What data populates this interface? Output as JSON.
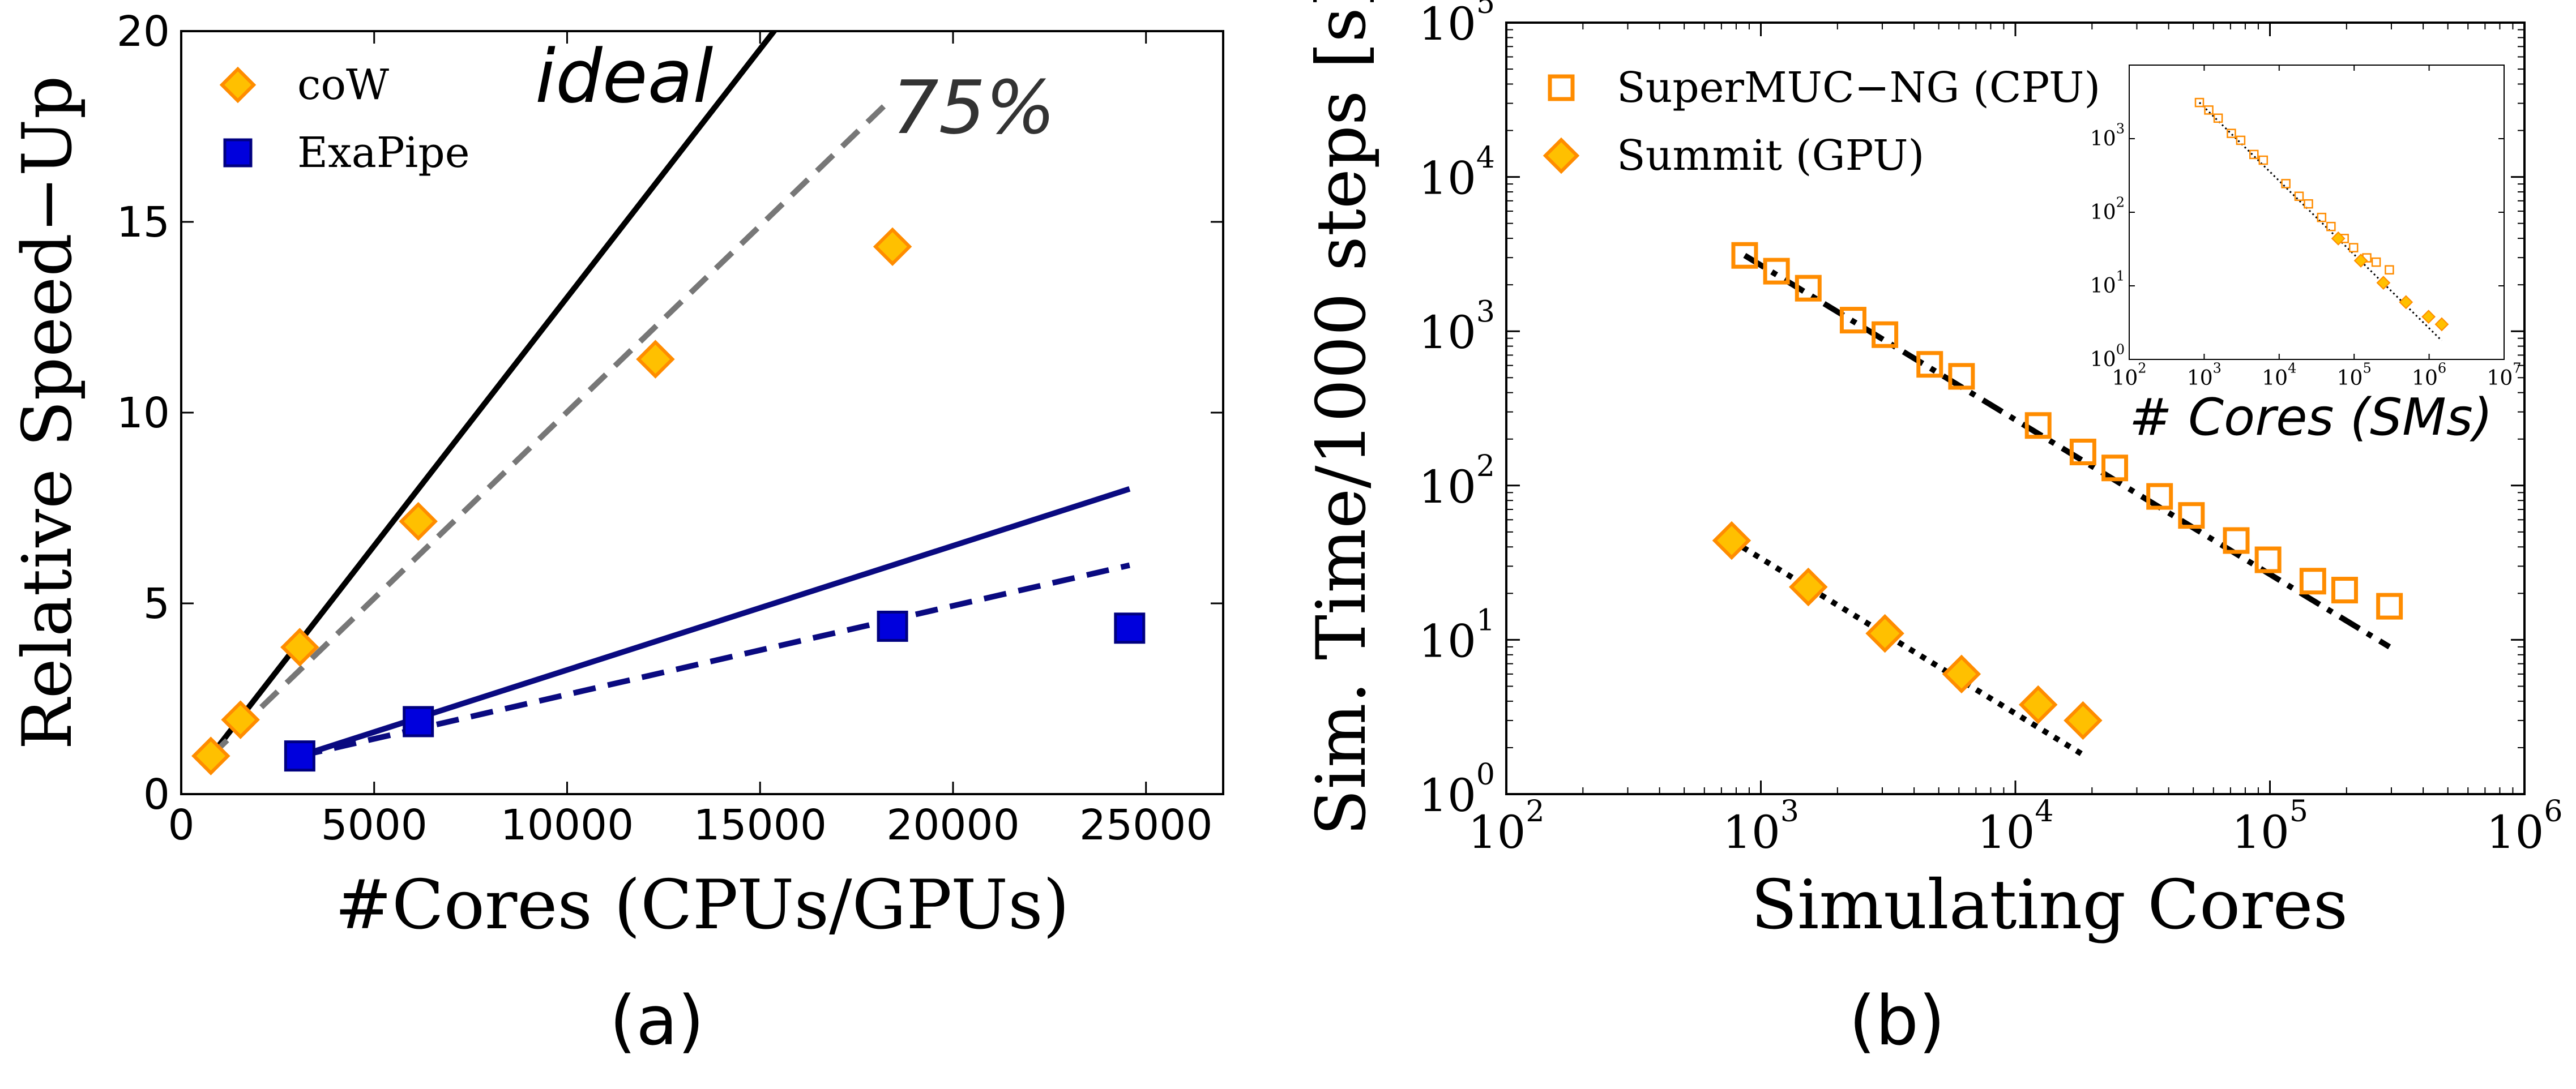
{
  "chart_data": [
    {
      "type": "line",
      "panel_label": "(a)",
      "xlabel": "#Cores (CPUs/GPUs)",
      "ylabel": "Relative Speed−Up",
      "xlim": [
        0,
        27000
      ],
      "ylim": [
        0,
        20
      ],
      "xticks": [
        0,
        5000,
        10000,
        15000,
        20000,
        25000
      ],
      "xtick_labels": [
        "0",
        "5000",
        "10000",
        "15000",
        "20000",
        "25000"
      ],
      "yticks": [
        0,
        5,
        10,
        15,
        20
      ],
      "ytick_labels": [
        "0",
        "5",
        "10",
        "15",
        "20"
      ],
      "grid": false,
      "legend_position": "top-left",
      "annotations": [
        {
          "text": "ideal",
          "style": "italic"
        },
        {
          "text": "75%",
          "style": "italic"
        }
      ],
      "series": [
        {
          "name": "coW",
          "kind": "scatter",
          "marker": "diamond",
          "color": "#ffc000",
          "edge_color": "#ff8c00",
          "x": [
            768,
            1536,
            3072,
            6144,
            12288,
            18432
          ],
          "y": [
            1.0,
            1.95,
            3.85,
            7.15,
            11.4,
            14.35
          ]
        },
        {
          "name": "ExaPipe",
          "kind": "scatter",
          "marker": "square",
          "color": "#0000dd",
          "edge_color": "#000080",
          "x": [
            3072,
            6144,
            18432,
            24576
          ],
          "y": [
            1.0,
            1.9,
            4.4,
            4.35
          ]
        },
        {
          "name": "coW ideal",
          "kind": "line",
          "style": "solid",
          "color": "#000000",
          "x": [
            768,
            15500
          ],
          "y": [
            1.0,
            20.18
          ]
        },
        {
          "name": "coW 75%",
          "kind": "line",
          "style": "dashed",
          "color": "#777777",
          "x": [
            768,
            18432
          ],
          "y": [
            1.0,
            18.25
          ]
        },
        {
          "name": "ExaPipe ideal",
          "kind": "line",
          "style": "solid",
          "color": "#0a0a80",
          "x": [
            3072,
            24576
          ],
          "y": [
            1.0,
            8.0
          ]
        },
        {
          "name": "ExaPipe 75%",
          "kind": "line",
          "style": "dashed",
          "color": "#0a0a80",
          "x": [
            3072,
            24576
          ],
          "y": [
            1.0,
            6.0
          ]
        }
      ]
    },
    {
      "type": "scatter",
      "panel_label": "(b)",
      "xlabel": "Simulating Cores",
      "ylabel": "Sim. Time/1000 steps [s]",
      "xscale": "log",
      "yscale": "log",
      "xlim": [
        100,
        1000000
      ],
      "ylim": [
        1,
        100000
      ],
      "xticks": [
        100,
        1000,
        10000,
        100000,
        1000000
      ],
      "xtick_labels": [
        {
          "base": "10",
          "exp": "2"
        },
        {
          "base": "10",
          "exp": "3"
        },
        {
          "base": "10",
          "exp": "4"
        },
        {
          "base": "10",
          "exp": "5"
        },
        {
          "base": "10",
          "exp": "6"
        }
      ],
      "yticks": [
        1,
        10,
        100,
        1000,
        10000,
        100000
      ],
      "ytick_labels": [
        {
          "base": "10",
          "exp": "0"
        },
        {
          "base": "10",
          "exp": "1"
        },
        {
          "base": "10",
          "exp": "2"
        },
        {
          "base": "10",
          "exp": "3"
        },
        {
          "base": "10",
          "exp": "4"
        },
        {
          "base": "10",
          "exp": "5"
        }
      ],
      "grid": false,
      "legend_position": "top-left",
      "series": [
        {
          "name": "SuperMUC−NG (CPU)",
          "kind": "scatter",
          "marker": "square-open",
          "color": "#ff8c00",
          "x": [
            864,
            1152,
            1536,
            2304,
            3072,
            4608,
            6144,
            12288,
            18432,
            24576,
            36864,
            49152,
            73728,
            98304,
            147456,
            196608,
            294912
          ],
          "y": [
            3100,
            2450,
            1900,
            1180,
            950,
            610,
            510,
            245,
            165,
            130,
            85,
            64,
            44,
            33,
            24,
            21,
            16.5
          ]
        },
        {
          "name": "Summit (GPU)",
          "kind": "scatter",
          "marker": "diamond",
          "color": "#ffc000",
          "edge_color": "#ff8c00",
          "x": [
            768,
            1536,
            3072,
            6144,
            12288,
            18432
          ],
          "y": [
            44,
            22,
            11,
            6,
            3.8,
            3.0
          ]
        },
        {
          "name": "CPU fit",
          "kind": "line",
          "style": "dashdot",
          "color": "#000000",
          "x": [
            864,
            294912
          ],
          "y": [
            3100,
            9
          ]
        },
        {
          "name": "GPU fit",
          "kind": "line",
          "style": "dotted",
          "color": "#000000",
          "x": [
            768,
            18432
          ],
          "y": [
            44,
            1.8
          ]
        }
      ],
      "inset": {
        "xlabel": "# Cores (SMs)",
        "xscale": "log",
        "yscale": "log",
        "xlim": [
          100,
          10000000
        ],
        "ylim": [
          1,
          10000
        ],
        "xticks": [
          100,
          1000,
          10000,
          100000,
          1000000,
          10000000
        ],
        "xtick_labels": [
          {
            "base": "10",
            "exp": "2"
          },
          {
            "base": "10",
            "exp": "3"
          },
          {
            "base": "10",
            "exp": "4"
          },
          {
            "base": "10",
            "exp": "5"
          },
          {
            "base": "10",
            "exp": "6"
          },
          {
            "base": "10",
            "exp": "7"
          }
        ],
        "yticks": [
          1,
          10,
          100,
          1000
        ],
        "ytick_labels": [
          {
            "base": "10",
            "exp": "0"
          },
          {
            "base": "10",
            "exp": "1"
          },
          {
            "base": "10",
            "exp": "2"
          },
          {
            "base": "10",
            "exp": "3"
          }
        ],
        "series": [
          {
            "name": "SuperMUC−NG (CPU)",
            "kind": "scatter",
            "marker": "square-open",
            "color": "#ff8c00",
            "x": [
              864,
              1152,
              1536,
              2304,
              3072,
              4608,
              6144,
              12288,
              18432,
              24576,
              36864,
              49152,
              73728,
              98304,
              147456,
              196608,
              294912
            ],
            "y": [
              3100,
              2450,
              1900,
              1180,
              950,
              610,
              510,
              245,
              165,
              130,
              85,
              64,
              44,
              33,
              24,
              21,
              16.5
            ]
          },
          {
            "name": "Summit (GPU, SMs)",
            "kind": "scatter",
            "marker": "diamond",
            "color": "#ffc000",
            "edge_color": "#ff8c00",
            "x": [
              61440,
              122880,
              245760,
              491520,
              983040,
              1474560
            ],
            "y": [
              44,
              22,
              11,
              6,
              3.8,
              3.0
            ]
          },
          {
            "name": "fit",
            "kind": "line",
            "style": "dotted",
            "color": "#000000",
            "x": [
              864,
              1474560
            ],
            "y": [
              3100,
              1.8
            ]
          }
        ]
      }
    }
  ]
}
